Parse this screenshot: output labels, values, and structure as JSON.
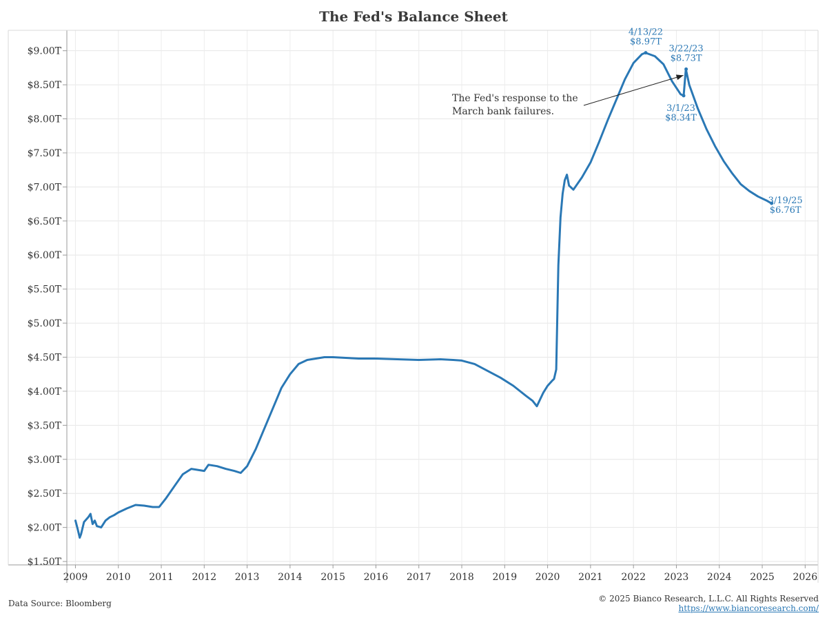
{
  "chart_data": {
    "type": "line",
    "title": "The Fed's Balance Sheet",
    "xlabel": "",
    "ylabel": "",
    "x_ticks": [
      "2009",
      "2010",
      "2011",
      "2012",
      "2013",
      "2014",
      "2015",
      "2016",
      "2017",
      "2018",
      "2019",
      "2020",
      "2021",
      "2022",
      "2023",
      "2024",
      "2025",
      "2026"
    ],
    "y_ticks": [
      "$1.50T",
      "$2.00T",
      "$2.50T",
      "$3.00T",
      "$3.50T",
      "$4.00T",
      "$4.50T",
      "$5.00T",
      "$5.50T",
      "$6.00T",
      "$6.50T",
      "$7.00T",
      "$7.50T",
      "$8.00T",
      "$8.50T",
      "$9.00T"
    ],
    "xlim": [
      2008.8,
      2026.3
    ],
    "ylim": [
      1.45,
      9.3
    ],
    "grid": true,
    "series": [
      {
        "color": "#2a78b5",
        "x": [
          2009.0,
          2009.05,
          2009.1,
          2009.13,
          2009.2,
          2009.3,
          2009.35,
          2009.4,
          2009.45,
          2009.5,
          2009.6,
          2009.7,
          2009.8,
          2009.9,
          2010.0,
          2010.2,
          2010.4,
          2010.6,
          2010.8,
          2010.95,
          2011.1,
          2011.3,
          2011.5,
          2011.7,
          2011.8,
          2012.0,
          2012.1,
          2012.3,
          2012.5,
          2012.7,
          2012.85,
          2013.0,
          2013.2,
          2013.4,
          2013.6,
          2013.8,
          2014.0,
          2014.2,
          2014.4,
          2014.6,
          2014.8,
          2015.0,
          2015.3,
          2015.6,
          2016.0,
          2016.5,
          2017.0,
          2017.5,
          2017.8,
          2018.0,
          2018.3,
          2018.6,
          2018.9,
          2019.2,
          2019.5,
          2019.65,
          2019.75,
          2019.9,
          2020.0,
          2020.1,
          2020.15,
          2020.2,
          2020.25,
          2020.3,
          2020.35,
          2020.4,
          2020.45,
          2020.5,
          2020.6,
          2020.8,
          2021.0,
          2021.2,
          2021.4,
          2021.6,
          2021.8,
          2022.0,
          2022.2,
          2022.28,
          2022.5,
          2022.7,
          2022.9,
          2023.1,
          2023.17,
          2023.22,
          2023.3,
          2023.5,
          2023.7,
          2023.9,
          2024.1,
          2024.3,
          2024.5,
          2024.7,
          2024.9,
          2025.1,
          2025.21
        ],
        "y": [
          2.1,
          1.98,
          1.85,
          1.9,
          2.08,
          2.15,
          2.2,
          2.05,
          2.1,
          2.02,
          2.0,
          2.1,
          2.15,
          2.18,
          2.22,
          2.28,
          2.33,
          2.32,
          2.3,
          2.3,
          2.42,
          2.6,
          2.78,
          2.86,
          2.85,
          2.83,
          2.92,
          2.9,
          2.86,
          2.83,
          2.8,
          2.9,
          3.15,
          3.45,
          3.75,
          4.05,
          4.25,
          4.4,
          4.46,
          4.48,
          4.5,
          4.5,
          4.49,
          4.48,
          4.48,
          4.47,
          4.46,
          4.47,
          4.46,
          4.45,
          4.4,
          4.3,
          4.2,
          4.08,
          3.93,
          3.86,
          3.78,
          3.98,
          4.08,
          4.15,
          4.18,
          4.32,
          5.85,
          6.55,
          6.9,
          7.1,
          7.18,
          7.02,
          6.96,
          7.14,
          7.36,
          7.66,
          7.98,
          8.28,
          8.58,
          8.82,
          8.95,
          8.97,
          8.92,
          8.8,
          8.55,
          8.36,
          8.34,
          8.73,
          8.5,
          8.15,
          7.85,
          7.6,
          7.38,
          7.2,
          7.04,
          6.94,
          6.86,
          6.8,
          6.76
        ]
      }
    ],
    "annotations": [
      {
        "date": "4/13/22",
        "value": "$8.97T"
      },
      {
        "date": "3/22/23",
        "value": "$8.73T"
      },
      {
        "date": "3/1/23",
        "value": "$8.34T"
      },
      {
        "date": "3/19/25",
        "value": "$6.76T"
      }
    ],
    "note_lines": [
      "The Fed's response to the",
      "March bank failures."
    ]
  },
  "footer": {
    "source": "Data Source: Bloomberg",
    "copyright": "© 2025 Bianco Research, L.L.C. All Rights Reserved",
    "url": "https://www.biancoresearch.com/"
  }
}
